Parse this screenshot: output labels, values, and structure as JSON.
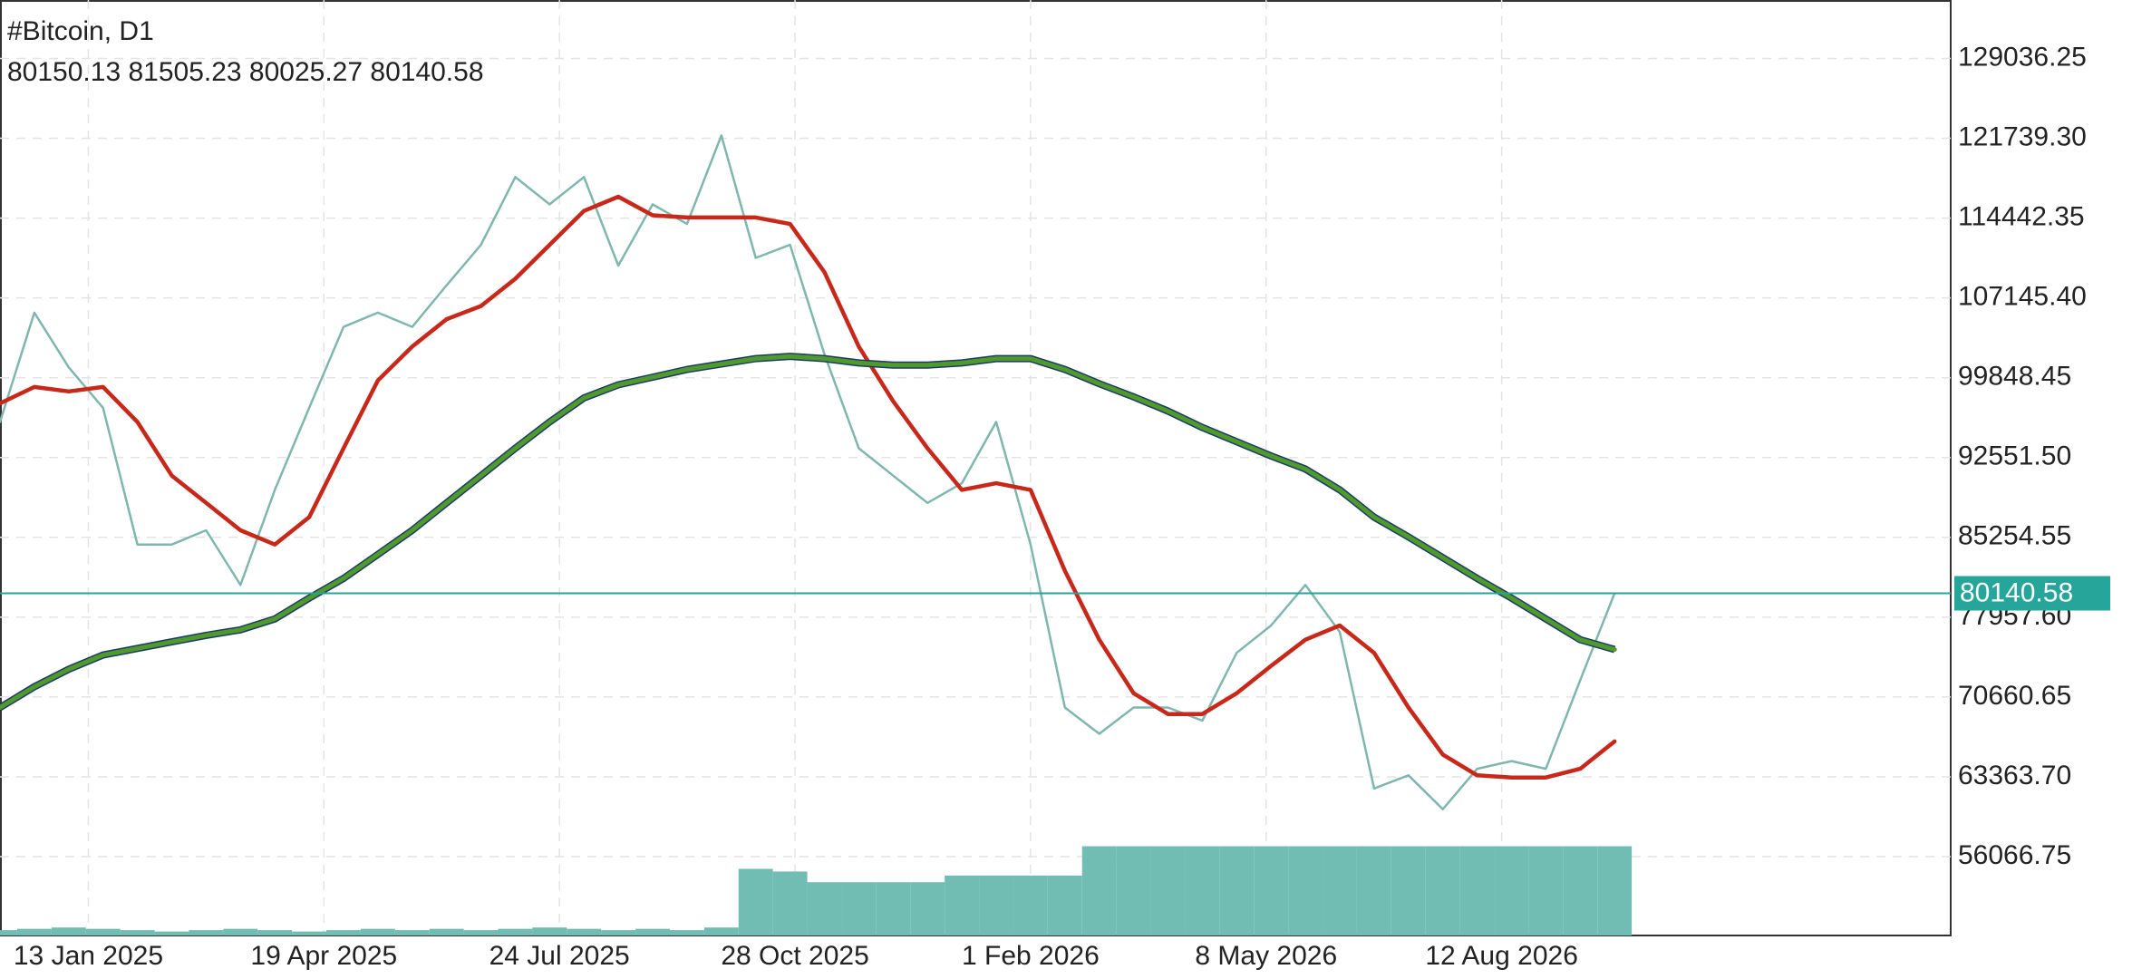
{
  "chart_data": {
    "type": "line",
    "title": "#Bitcoin, D1",
    "subtitle": "80150.13 81505.23 80025.27 80140.58",
    "x": [
      "2024-12-08",
      "2024-12-22",
      "2025-01-05",
      "2025-01-19",
      "2025-02-02",
      "2025-02-16",
      "2025-03-02",
      "2025-03-16",
      "2025-03-30",
      "2025-04-13",
      "2025-04-27",
      "2025-05-11",
      "2025-05-25",
      "2025-06-08",
      "2025-06-22",
      "2025-07-06",
      "2025-07-20",
      "2025-08-03",
      "2025-08-17",
      "2025-08-31",
      "2025-09-14",
      "2025-09-28",
      "2025-10-12",
      "2025-10-26",
      "2025-11-09",
      "2025-11-23",
      "2025-12-07",
      "2025-12-21",
      "2026-01-04",
      "2026-01-18",
      "2026-02-01",
      "2026-02-15",
      "2026-03-01",
      "2026-03-15",
      "2026-03-29",
      "2026-04-12",
      "2026-04-26",
      "2026-05-10",
      "2026-05-24",
      "2026-06-07",
      "2026-06-21",
      "2026-07-05",
      "2026-07-19",
      "2026-08-02",
      "2026-08-16",
      "2026-08-30",
      "2026-09-13",
      "2026-09-27"
    ],
    "series": [
      {
        "color": "#7fb7ae",
        "width": 2.5,
        "values": [
          95800,
          105800,
          100800,
          97100,
          84600,
          84600,
          85900,
          80900,
          89600,
          97100,
          104500,
          105800,
          104500,
          108300,
          112000,
          118200,
          115700,
          118200,
          110100,
          115700,
          113900,
          122000,
          110800,
          112000,
          102000,
          93400,
          90900,
          88400,
          90200,
          95800,
          84600,
          69700,
          67300,
          69700,
          69700,
          68500,
          74700,
          77200,
          80900,
          76600,
          62300,
          63500,
          60400,
          64100,
          64800,
          64100,
          72200,
          80140.58
        ]
      },
      {
        "color": "#c8281a",
        "width": 4.5,
        "values": [
          97500,
          99000,
          98600,
          99000,
          95800,
          90900,
          88400,
          85900,
          84600,
          87100,
          93400,
          99600,
          102700,
          105200,
          106400,
          108900,
          112000,
          115100,
          116400,
          114700,
          114500,
          114500,
          114500,
          113900,
          109500,
          102700,
          97700,
          93400,
          89600,
          90200,
          89600,
          82200,
          75900,
          71000,
          69100,
          69100,
          71000,
          73500,
          75900,
          77200,
          74700,
          69700,
          65400,
          63500,
          63300,
          63300,
          64100,
          66600
        ]
      },
      {
        "color": "#4f9a2a",
        "outline": "#1b3a6b",
        "width": 5,
        "values": [
          69700,
          71600,
          73200,
          74500,
          75100,
          75700,
          76300,
          76800,
          77800,
          79700,
          81500,
          83700,
          85900,
          88400,
          90900,
          93400,
          95800,
          98000,
          99200,
          99900,
          100600,
          101100,
          101600,
          101800,
          101600,
          101200,
          101000,
          101000,
          101200,
          101600,
          101600,
          100600,
          99300,
          98100,
          96800,
          95300,
          94000,
          92700,
          91500,
          89600,
          87100,
          85300,
          83400,
          81500,
          79700,
          77800,
          75900,
          75000
        ]
      }
    ],
    "volume": {
      "color": "#72bdb3",
      "vlim": [
        0,
        100
      ],
      "values": [
        4,
        5,
        6,
        5,
        4,
        3,
        4,
        5,
        4,
        3,
        4,
        5,
        4,
        5,
        4,
        5,
        6,
        5,
        4,
        5,
        4,
        6,
        50,
        48,
        40,
        40,
        40,
        40,
        45,
        45,
        45,
        45,
        67,
        67,
        67,
        67,
        67,
        67,
        67,
        67,
        67,
        67,
        67,
        67,
        67,
        67,
        67,
        67
      ]
    },
    "xlim": [
      "2024-12-08",
      "2027-02-11"
    ],
    "xticks": [
      {
        "value": "2025-01-13",
        "label": "13 Jan 2025"
      },
      {
        "value": "2025-04-19",
        "label": "19 Apr 2025"
      },
      {
        "value": "2025-07-24",
        "label": "24 Jul 2025"
      },
      {
        "value": "2025-10-28",
        "label": "28 Oct 2025"
      },
      {
        "value": "2026-02-01",
        "label": "1 Feb 2026"
      },
      {
        "value": "2026-05-08",
        "label": "8 May 2026"
      },
      {
        "value": "2026-08-12",
        "label": "12 Aug 2026"
      }
    ],
    "ylim": [
      48857,
      134381
    ],
    "yticks": [
      56066.75,
      {
        "value": 63363.7,
        "label": "63363.70"
      },
      70660.65,
      {
        "value": 77957.6,
        "label": "77957.60"
      },
      85254.55,
      {
        "value": 92551.5,
        "label": "92551.50"
      },
      99848.45,
      {
        "value": 107145.4,
        "label": "107145.40"
      },
      114442.35,
      {
        "value": 121739.3,
        "label": "121739.30"
      },
      129036.25
    ],
    "grid": true,
    "price_line_color": "#26a69a"
  }
}
